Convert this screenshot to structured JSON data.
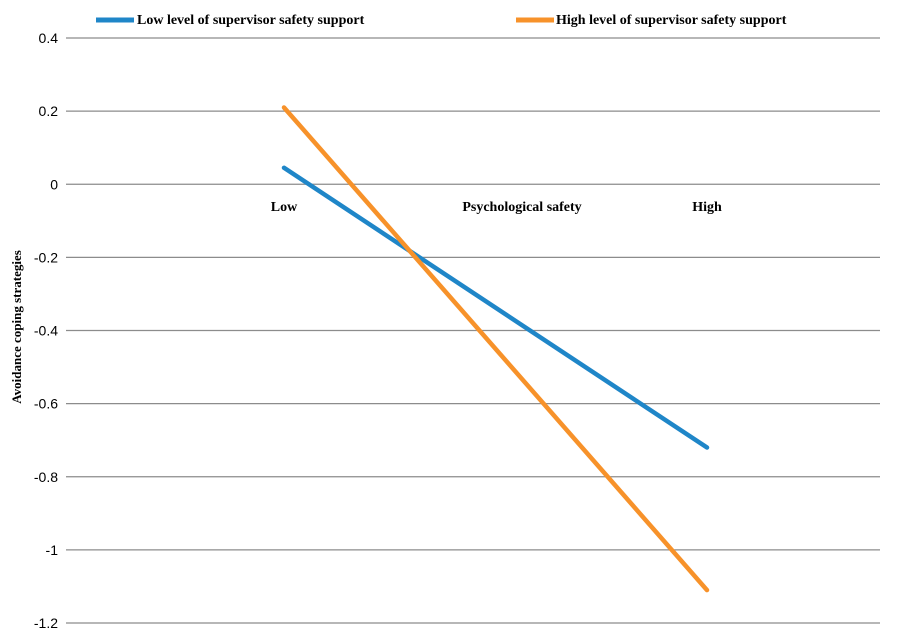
{
  "chart_data": {
    "type": "line",
    "xlabel": "Psychological safety",
    "ylabel": "Avoidance coping strategies",
    "categories": [
      "Low",
      "High"
    ],
    "ylim": [
      -1.2,
      0.4
    ],
    "yticks": [
      0.4,
      0.2,
      0,
      -0.2,
      -0.4,
      -0.6,
      -0.8,
      -1,
      -1.2
    ],
    "ytick_labels": [
      "0.4",
      "0.2",
      "0",
      "-0.2",
      "-0.4",
      "-0.6",
      "-0.8",
      "-1",
      "-1.2"
    ],
    "grid": true,
    "legend_position": "top",
    "series": [
      {
        "name": "Low level of supervisor safety support",
        "color": "#1f86c8",
        "values": [
          0.045,
          -0.72
        ]
      },
      {
        "name": "High level of supervisor safety support",
        "color": "#f7922a",
        "values": [
          0.21,
          -1.11
        ]
      }
    ]
  }
}
